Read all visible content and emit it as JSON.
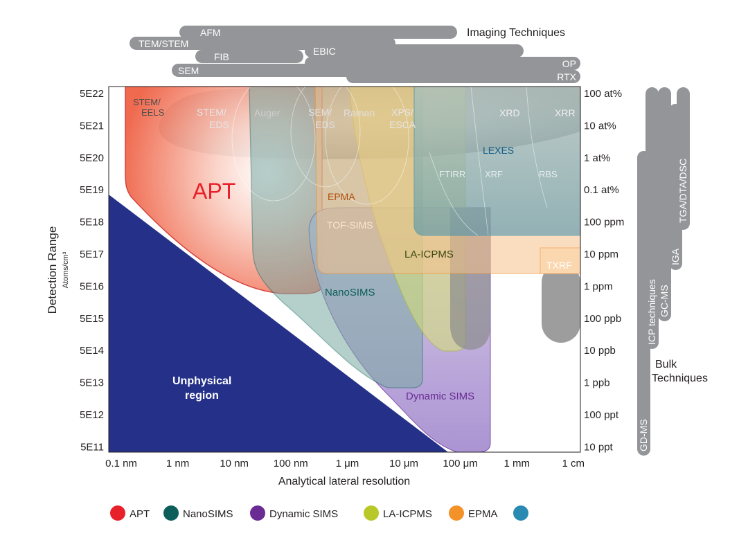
{
  "chart_data": {
    "type": "area",
    "xlabel": "Analytical lateral resolution",
    "ylabel": "Detection Range",
    "ylabel_units": "Atoms/cm³",
    "x_scale": "log",
    "y_scale": "log",
    "x_ticks": [
      "0.1 nm",
      "1 nm",
      "10 nm",
      "100 nm",
      "1 μm",
      "10 μm",
      "100 μm",
      "1 mm",
      "1 cm"
    ],
    "y_ticks_left": [
      "5E22",
      "5E21",
      "5E20",
      "5E19",
      "5E18",
      "5E17",
      "5E16",
      "5E15",
      "5E14",
      "5E13",
      "5E12",
      "5E11"
    ],
    "y_ticks_right": [
      "100 at%",
      "10 at%",
      "1 at%",
      "0.1 at%",
      "100 ppm",
      "10 ppm",
      "1 ppm",
      "100 ppb",
      "10 ppb",
      "1 ppb",
      "100 ppt",
      "10 ppt"
    ],
    "regions": [
      {
        "label": "APT",
        "color": "#e8202a"
      },
      {
        "label": "NanoSIMS",
        "color": "#0c5e5a"
      },
      {
        "label": "Dynamic SIMS",
        "color": "#6a2b94"
      },
      {
        "label": "LA-ICPMS",
        "color": "#b9c829"
      },
      {
        "label": "EPMA",
        "color": "#f4922a"
      },
      {
        "label": "LEXES",
        "color": "#2b8ab2"
      },
      {
        "label": "STEM/ EELS",
        "color": "#888888"
      },
      {
        "label": "STEM/ EDS",
        "color": "#888888"
      },
      {
        "label": "Auger",
        "color": "#888888"
      },
      {
        "label": "SEM/ EDS",
        "color": "#888888"
      },
      {
        "label": "Raman",
        "color": "#888888"
      },
      {
        "label": "XPS/ ESCA",
        "color": "#888888"
      },
      {
        "label": "XRD",
        "color": "#888888"
      },
      {
        "label": "XRR",
        "color": "#888888"
      },
      {
        "label": "FTIRR",
        "color": "#888888"
      },
      {
        "label": "XRF",
        "color": "#888888"
      },
      {
        "label": "RBS",
        "color": "#888888"
      },
      {
        "label": "TOF-SIMS",
        "color": "#f4922a"
      },
      {
        "label": "TXRF",
        "color": "#f4922a"
      }
    ],
    "unphysical_label": "Unphysical region",
    "imaging_title": "Imaging Techniques",
    "imaging_bars": [
      "AFM",
      "TEM/STEM",
      "FIB",
      "EBIC",
      "SEM",
      "OP",
      "RTX"
    ],
    "bulk_title": "Bulk Techniques",
    "bulk_bars": [
      "TGA/DTA/DSC",
      "IGA",
      "GC-MS",
      "ICP techniques",
      "GD-MS"
    ],
    "legend": [
      {
        "label": "APT",
        "color": "#e8202a"
      },
      {
        "label": "NanoSIMS",
        "color": "#0c5e5a"
      },
      {
        "label": "Dynamic SIMS",
        "color": "#6a2b94"
      },
      {
        "label": "LA-ICPMS",
        "color": "#b9c829"
      },
      {
        "label": "EPMA",
        "color": "#f4922a"
      },
      {
        "label": "",
        "color": "#2b8ab2"
      }
    ]
  }
}
